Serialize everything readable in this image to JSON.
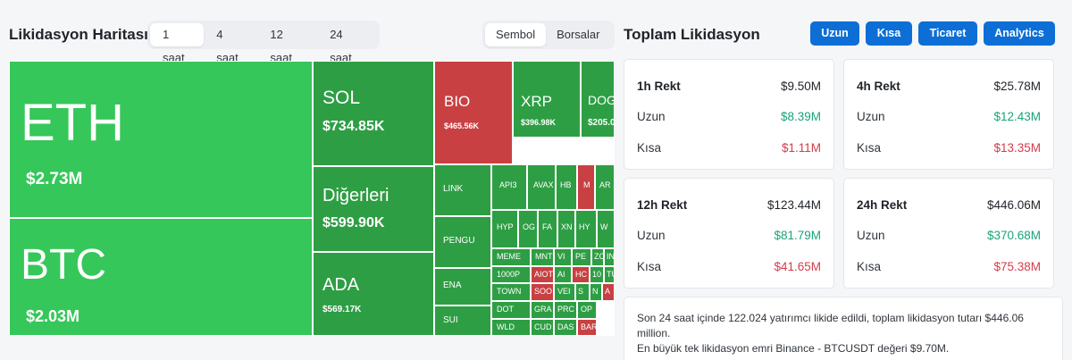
{
  "map": {
    "title": "Likidasyon Haritası",
    "time_tabs": [
      "1 saat",
      "4 saat",
      "12 saat",
      "24 saat"
    ],
    "active_time_tab": "1 saat",
    "view_tabs": [
      "Sembol",
      "Borsalar"
    ],
    "active_view_tab": "Sembol",
    "colors": {
      "long_big": "#35c759",
      "long": "#2e9e44",
      "short": "#c84042"
    },
    "cells": [
      {
        "sym": "ETH",
        "val": "$2.73M"
      },
      {
        "sym": "BTC",
        "val": "$2.03M"
      },
      {
        "sym": "SOL",
        "val": "$734.85K"
      },
      {
        "sym": "Diğerleri",
        "val": "$599.90K"
      },
      {
        "sym": "ADA",
        "val": "$569.17K"
      },
      {
        "sym": "BIO",
        "val": "$465.56K"
      },
      {
        "sym": "XRP",
        "val": "$396.98K"
      },
      {
        "sym": "DOG",
        "val": "$205.0"
      },
      {
        "sym": "LINK"
      },
      {
        "sym": "PENGU"
      },
      {
        "sym": "ENA"
      },
      {
        "sym": "SUI"
      },
      {
        "sym": "API3"
      },
      {
        "sym": "AVAX"
      },
      {
        "sym": "HB"
      },
      {
        "sym": "M"
      },
      {
        "sym": "AR"
      },
      {
        "sym": "HYP"
      },
      {
        "sym": "OG"
      },
      {
        "sym": "FA"
      },
      {
        "sym": "XN"
      },
      {
        "sym": "HY"
      },
      {
        "sym": "W"
      },
      {
        "sym": "MEME"
      },
      {
        "sym": "MNT"
      },
      {
        "sym": "VI"
      },
      {
        "sym": "PE"
      },
      {
        "sym": "ZC"
      },
      {
        "sym": "IN"
      },
      {
        "sym": "1000P"
      },
      {
        "sym": "AIOT"
      },
      {
        "sym": "AI"
      },
      {
        "sym": "HC"
      },
      {
        "sym": "10"
      },
      {
        "sym": "TU"
      },
      {
        "sym": "TOWN"
      },
      {
        "sym": "SOO"
      },
      {
        "sym": "DOT"
      },
      {
        "sym": "GRA"
      },
      {
        "sym": "WLD"
      },
      {
        "sym": "CUD"
      },
      {
        "sym": "VEI"
      },
      {
        "sym": "S"
      },
      {
        "sym": "N"
      },
      {
        "sym": "A"
      },
      {
        "sym": "PRC"
      },
      {
        "sym": "OP"
      },
      {
        "sym": "DAS"
      },
      {
        "sym": "BAR"
      }
    ]
  },
  "total": {
    "title": "Toplam Likidasyon",
    "buttons": [
      "Uzun",
      "Kısa",
      "Ticaret",
      "Analytics"
    ],
    "long_label": "Uzun",
    "short_label": "Kısa",
    "cards": [
      {
        "label": "1h Rekt",
        "total": "$9.50M",
        "long": "$8.39M",
        "short": "$1.11M"
      },
      {
        "label": "4h Rekt",
        "total": "$25.78M",
        "long": "$12.43M",
        "short": "$13.35M"
      },
      {
        "label": "12h Rekt",
        "total": "$123.44M",
        "long": "$81.79M",
        "short": "$41.65M"
      },
      {
        "label": "24h Rekt",
        "total": "$446.06M",
        "long": "$370.68M",
        "short": "$75.38M"
      }
    ],
    "summary_line1": "Son 24 saat içinde 122.024 yatırımcı likide edildi, toplam likidasyon tutarı $446.06 million.",
    "summary_line2": "En büyük tek likidasyon emri Binance - BTCUSDT değeri $9.70M."
  }
}
